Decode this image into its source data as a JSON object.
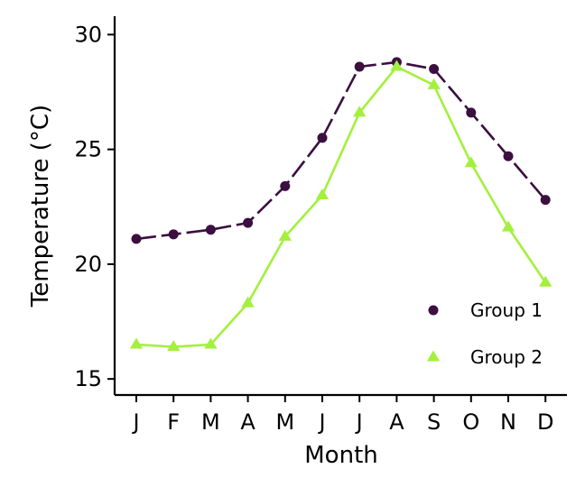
{
  "chart_data": {
    "type": "line",
    "categories": [
      "J",
      "F",
      "M",
      "A",
      "M",
      "J",
      "J",
      "A",
      "S",
      "O",
      "N",
      "D"
    ],
    "series": [
      {
        "name": "Group 1",
        "values": [
          21.1,
          21.3,
          21.5,
          21.8,
          23.4,
          25.5,
          28.6,
          28.8,
          28.5,
          26.6,
          24.7,
          22.8
        ],
        "color": "#3b0f3f",
        "marker": "circle",
        "line": "dashed"
      },
      {
        "name": "Group 2",
        "values": [
          16.5,
          16.4,
          16.5,
          18.3,
          21.2,
          23.0,
          26.6,
          28.6,
          27.8,
          24.4,
          21.6,
          19.2
        ],
        "color": "#a3f03d",
        "marker": "triangle",
        "line": "solid"
      }
    ],
    "xlabel": "Month",
    "ylabel": "Temperature (°C)",
    "yticks": [
      15,
      20,
      25,
      30
    ],
    "ylim": [
      14.3,
      30.8
    ],
    "grid": false,
    "legend_position": "bottom-right"
  }
}
